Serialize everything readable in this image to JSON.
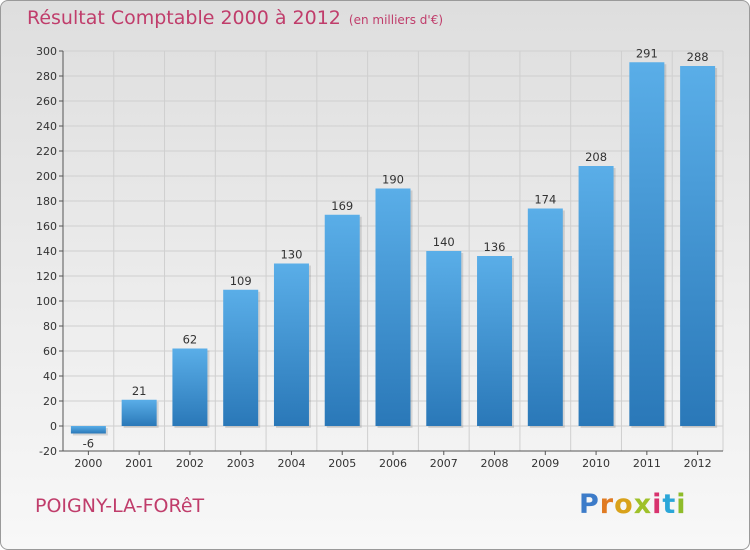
{
  "header": {
    "title": "Résultat Comptable 2000 à 2012",
    "subtitle": "(en milliers d'€)"
  },
  "footer": {
    "town": "POIGNY-LA-FORêT",
    "logo_letters": [
      "P",
      "r",
      "o",
      "x",
      "i",
      "t",
      "i"
    ],
    "logo_colors": [
      "#3d7cc9",
      "#e07b22",
      "#d9a21b",
      "#9fc12a",
      "#d8336e",
      "#2ba6d8",
      "#8fbc2a"
    ]
  },
  "chart_data": {
    "type": "bar",
    "categories": [
      "2000",
      "2001",
      "2002",
      "2003",
      "2004",
      "2005",
      "2006",
      "2007",
      "2008",
      "2009",
      "2010",
      "2011",
      "2012"
    ],
    "values": [
      -6,
      21,
      62,
      109,
      130,
      169,
      190,
      140,
      136,
      174,
      208,
      291,
      288
    ],
    "ylim": [
      -20,
      300
    ],
    "yticks": [
      -20,
      0,
      20,
      40,
      60,
      80,
      100,
      120,
      140,
      160,
      180,
      200,
      220,
      240,
      260,
      280,
      300
    ],
    "grid": true,
    "bar_color_top": "#5aaee8",
    "bar_color_bottom": "#2a78b8",
    "grid_color": "#cfcfcf"
  }
}
